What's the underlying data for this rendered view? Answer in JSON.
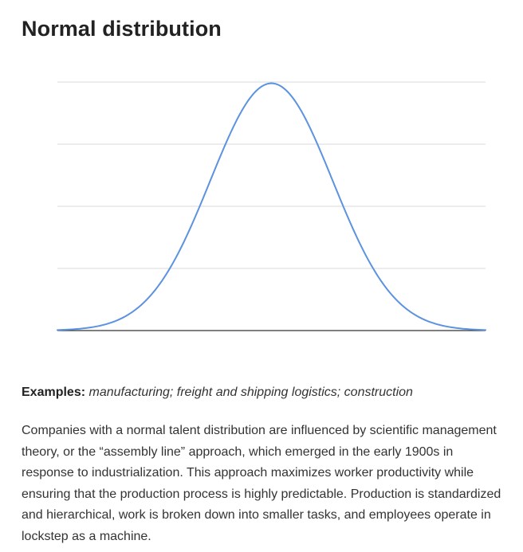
{
  "title": "Normal distribution",
  "chart_data": {
    "type": "line",
    "title": "",
    "xlabel": "",
    "ylabel": "",
    "x_range": [
      -3.5,
      3.5
    ],
    "ylim": [
      0,
      1
    ],
    "curve": "normal-pdf",
    "mean": 0,
    "std_dev": 1,
    "grid": true,
    "legend": "none",
    "line_color": "#5b93e0",
    "grid_color": "#d9d9d9",
    "axis_color": "#333333"
  },
  "examples": {
    "label": "Examples:",
    "list": "manufacturing; freight and shipping logistics; construction"
  },
  "paragraph": "Companies with a normal talent distribution are influenced by scientific management theory, or the “assembly line” approach, which emerged in the early 1900s in response to industrialization. This approach maximizes worker productivity while ensuring that the production process is highly predictable. Production is standardized and hierarchical, work is broken down into smaller tasks, and employees operate in lockstep as a machine."
}
